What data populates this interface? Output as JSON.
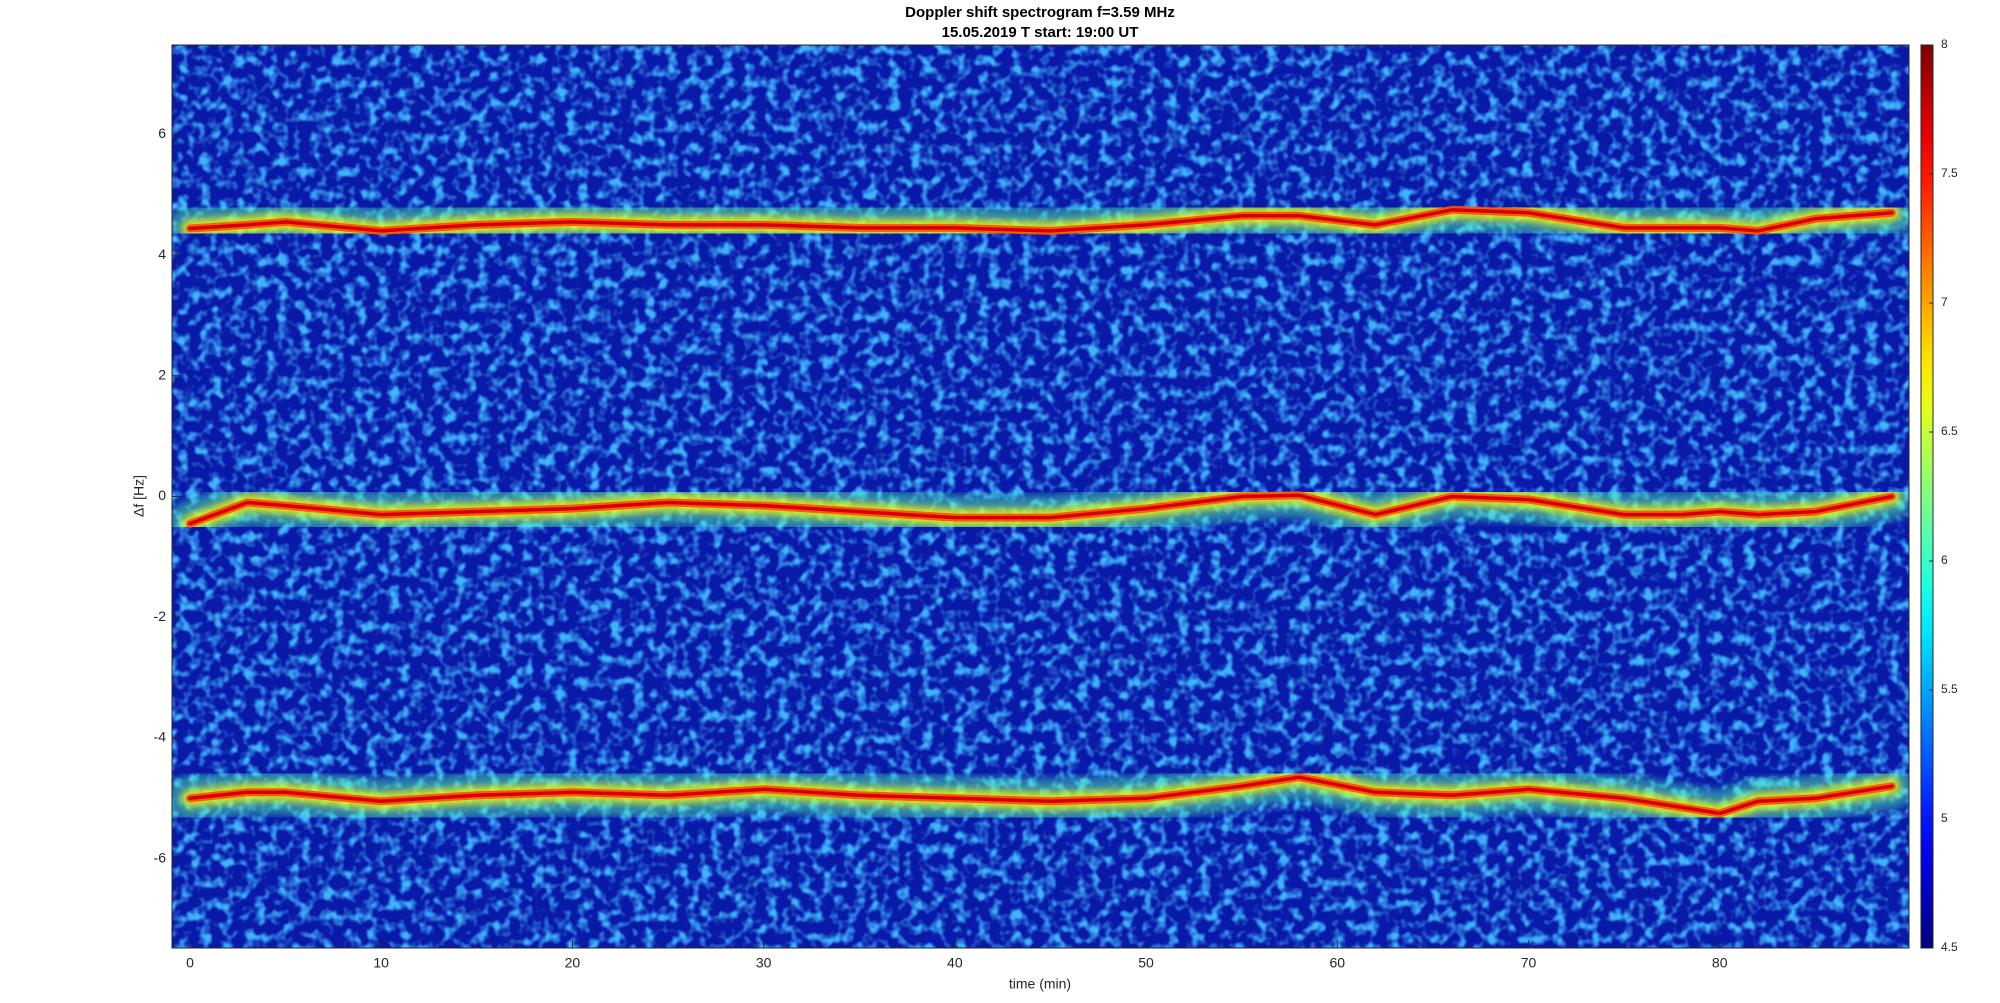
{
  "chart_data": {
    "type": "spectrogram",
    "title": "Doppler shift spectrogram f=3.59 MHz",
    "subtitle": "15.05.2019   T start: 19:00 UT",
    "x_label": "time (min)",
    "y_label": "Δf [Hz]",
    "x": [
      0,
      3,
      5,
      10,
      15,
      20,
      25,
      30,
      35,
      40,
      45,
      50,
      55,
      58,
      62,
      66,
      70,
      75,
      78,
      80,
      82,
      85,
      89
    ],
    "series": [
      {
        "color": "#d40000",
        "values": [
          4.44,
          4.5,
          4.55,
          4.4,
          4.5,
          4.55,
          4.5,
          4.5,
          4.45,
          4.45,
          4.4,
          4.5,
          4.65,
          4.65,
          4.5,
          4.75,
          4.7,
          4.45,
          4.45,
          4.45,
          4.4,
          4.6,
          4.7
        ]
      },
      {
        "color": "#d40000",
        "values": [
          -0.45,
          -0.1,
          -0.15,
          -0.3,
          -0.25,
          -0.2,
          -0.1,
          -0.15,
          -0.25,
          -0.35,
          -0.35,
          -0.2,
          0.0,
          0.02,
          -0.3,
          0.0,
          -0.05,
          -0.3,
          -0.3,
          -0.25,
          -0.3,
          -0.25,
          0.0
        ]
      },
      {
        "color": "#d40000",
        "values": [
          -5.0,
          -4.9,
          -4.9,
          -5.05,
          -4.95,
          -4.9,
          -4.95,
          -4.85,
          -4.95,
          -5.0,
          -5.05,
          -5.0,
          -4.8,
          -4.65,
          -4.9,
          -4.95,
          -4.85,
          -5.0,
          -5.15,
          -5.25,
          -5.05,
          -5.0,
          -4.8
        ]
      }
    ],
    "xlim": [
      -0.94,
      89.9
    ],
    "ylim": [
      -7.48,
      7.48
    ],
    "xticks": [
      0,
      10,
      20,
      30,
      40,
      50,
      60,
      70,
      80
    ],
    "yticks": [
      -6,
      -4,
      -2,
      0,
      2,
      4,
      6
    ],
    "colormap": "jet",
    "clim": [
      4.5,
      8
    ],
    "cticks": [
      4.5,
      5,
      5.5,
      6,
      6.5,
      7,
      7.5,
      8
    ]
  }
}
